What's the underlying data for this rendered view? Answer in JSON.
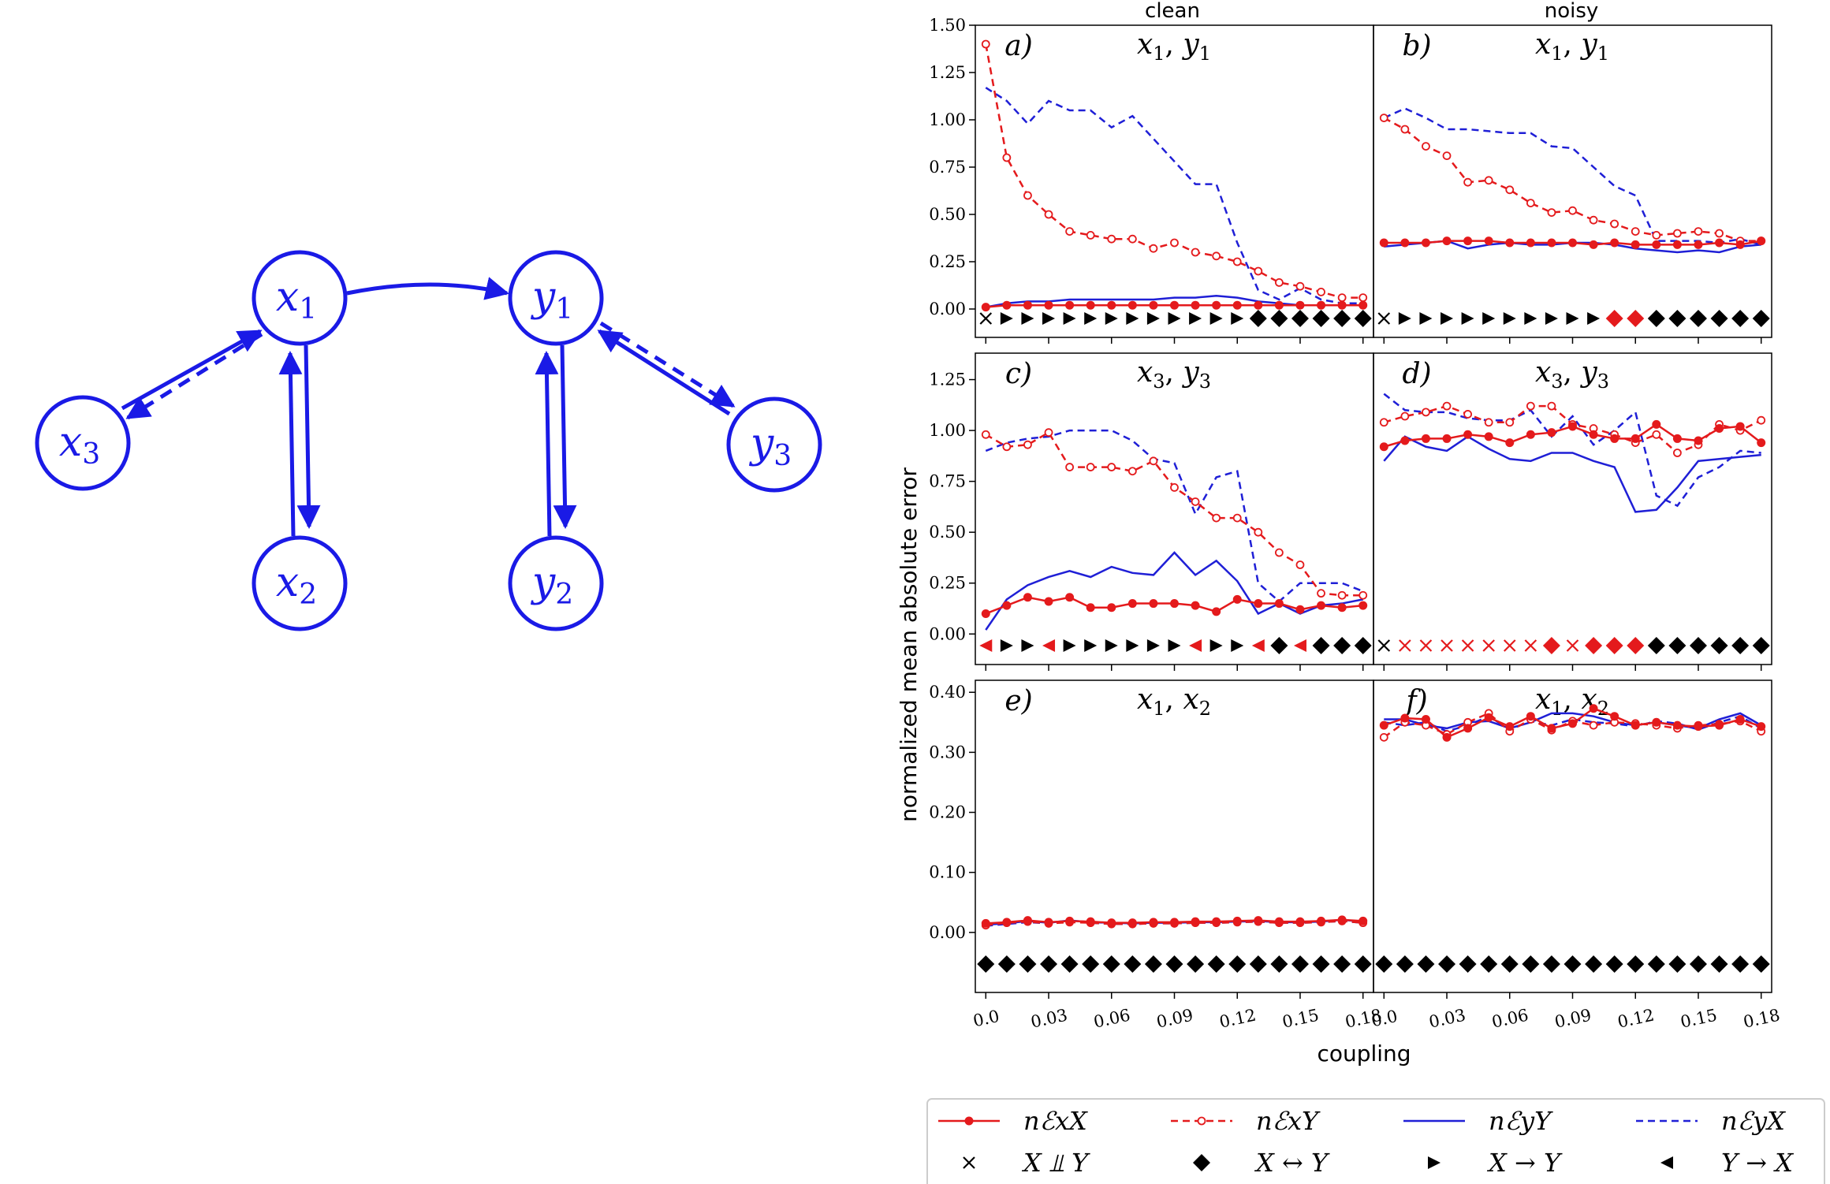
{
  "graph": {
    "nodes": [
      {
        "id": "x1",
        "base": "x",
        "sub": "1"
      },
      {
        "id": "y1",
        "base": "y",
        "sub": "1"
      },
      {
        "id": "x3",
        "base": "x",
        "sub": "3"
      },
      {
        "id": "x2",
        "base": "x",
        "sub": "2"
      },
      {
        "id": "y2",
        "base": "y",
        "sub": "2"
      },
      {
        "id": "y3",
        "base": "y",
        "sub": "3"
      }
    ],
    "edges": [
      {
        "from": "x1",
        "to": "y1",
        "style": "solid"
      },
      {
        "from": "x3",
        "to": "x1",
        "style": "solid"
      },
      {
        "from": "x1",
        "to": "x3",
        "style": "dashed"
      },
      {
        "from": "x1",
        "to": "x2",
        "style": "solid"
      },
      {
        "from": "x2",
        "to": "x1",
        "style": "solid"
      },
      {
        "from": "y1",
        "to": "y2",
        "style": "solid"
      },
      {
        "from": "y2",
        "to": "y1",
        "style": "solid"
      },
      {
        "from": "y3",
        "to": "y1",
        "style": "solid"
      },
      {
        "from": "y1",
        "to": "y3",
        "style": "dashed"
      }
    ],
    "color": "#1a1ae6"
  },
  "colors": {
    "red": "#e41a1c",
    "blue": "#1f1fd6",
    "black": "#000000"
  },
  "column_titles": [
    "clean",
    "noisy"
  ],
  "ylabel": "normalized mean absolute error",
  "xlabel": "coupling",
  "legend": {
    "lines": [
      {
        "key": "nExX",
        "label": "nℰxX",
        "color": "#e41a1c",
        "dash": "solid",
        "marker": "filled"
      },
      {
        "key": "nExY",
        "label": "nℰxY",
        "color": "#e41a1c",
        "dash": "dashed",
        "marker": "open"
      },
      {
        "key": "nEyY",
        "label": "nℰyY",
        "color": "#1f1fd6",
        "dash": "solid",
        "marker": "none"
      },
      {
        "key": "nEyX",
        "label": "nℰyX",
        "color": "#1f1fd6",
        "dash": "dashed",
        "marker": "none"
      }
    ],
    "symbols": [
      {
        "key": "x",
        "label": "X ⫫ Y"
      },
      {
        "key": "d",
        "label": "X ↔ Y"
      },
      {
        "key": "r",
        "label": "X → Y"
      },
      {
        "key": "l",
        "label": "Y → X"
      }
    ]
  },
  "chart_data": {
    "type": "line",
    "x": [
      0.0,
      0.01,
      0.02,
      0.03,
      0.04,
      0.05,
      0.06,
      0.07,
      0.08,
      0.09,
      0.1,
      0.11,
      0.12,
      0.13,
      0.14,
      0.15,
      0.16,
      0.17,
      0.18
    ],
    "xticks": [
      "0.0",
      "0.03",
      "0.06",
      "0.09",
      "0.12",
      "0.15",
      "0.18"
    ],
    "panels": [
      {
        "label": "a)",
        "pair": "x1, y1",
        "pair_base": [
          "x",
          "y"
        ],
        "pair_sub": [
          "1",
          "1"
        ],
        "ylim": [
          -0.15,
          1.5
        ],
        "yticks": [
          "0.00",
          "0.25",
          "0.50",
          "0.75",
          "1.00",
          "1.25",
          "1.50"
        ],
        "series": {
          "nExX": [
            0.01,
            0.02,
            0.02,
            0.02,
            0.02,
            0.02,
            0.02,
            0.02,
            0.02,
            0.02,
            0.02,
            0.02,
            0.02,
            0.02,
            0.02,
            0.02,
            0.02,
            0.02,
            0.02
          ],
          "nExY": [
            1.4,
            0.8,
            0.6,
            0.5,
            0.41,
            0.39,
            0.37,
            0.37,
            0.32,
            0.35,
            0.3,
            0.28,
            0.25,
            0.2,
            0.14,
            0.12,
            0.09,
            0.06,
            0.06
          ],
          "nEyY": [
            0.01,
            0.03,
            0.04,
            0.04,
            0.05,
            0.05,
            0.05,
            0.05,
            0.05,
            0.06,
            0.06,
            0.07,
            0.06,
            0.04,
            0.03,
            0.02,
            0.02,
            0.02,
            0.02
          ],
          "nEyX": [
            1.17,
            1.1,
            0.98,
            1.1,
            1.05,
            1.05,
            0.96,
            1.02,
            0.9,
            0.78,
            0.66,
            0.66,
            0.35,
            0.1,
            0.05,
            0.11,
            0.05,
            0.03,
            0.03
          ]
        },
        "symbols": [
          "x",
          "r",
          "r",
          "r",
          "r",
          "r",
          "r",
          "r",
          "r",
          "r",
          "r",
          "r",
          "r",
          "d",
          "d",
          "d",
          "d",
          "d",
          "d"
        ],
        "symbol_colors": [
          "k",
          "k",
          "k",
          "k",
          "k",
          "k",
          "k",
          "k",
          "k",
          "k",
          "k",
          "k",
          "k",
          "k",
          "k",
          "k",
          "k",
          "k",
          "k"
        ]
      },
      {
        "label": "b)",
        "pair": "x1, y1",
        "pair_base": [
          "x",
          "y"
        ],
        "pair_sub": [
          "1",
          "1"
        ],
        "ylim": [
          -0.15,
          1.5
        ],
        "yticks": [],
        "series": {
          "nExX": [
            0.35,
            0.35,
            0.35,
            0.36,
            0.36,
            0.36,
            0.35,
            0.35,
            0.35,
            0.35,
            0.34,
            0.35,
            0.34,
            0.34,
            0.34,
            0.34,
            0.35,
            0.34,
            0.36
          ],
          "nExY": [
            1.01,
            0.95,
            0.86,
            0.81,
            0.67,
            0.68,
            0.63,
            0.56,
            0.51,
            0.52,
            0.47,
            0.45,
            0.41,
            0.39,
            0.4,
            0.41,
            0.4,
            0.36,
            0.36
          ],
          "nEyY": [
            0.33,
            0.34,
            0.35,
            0.36,
            0.32,
            0.34,
            0.35,
            0.34,
            0.34,
            0.35,
            0.35,
            0.34,
            0.32,
            0.31,
            0.3,
            0.31,
            0.3,
            0.33,
            0.34
          ],
          "nEyX": [
            1.01,
            1.06,
            1.01,
            0.95,
            0.95,
            0.94,
            0.93,
            0.93,
            0.86,
            0.85,
            0.75,
            0.65,
            0.6,
            0.36,
            0.36,
            0.36,
            0.35,
            0.37,
            0.34
          ]
        },
        "symbols": [
          "x",
          "r",
          "r",
          "r",
          "r",
          "r",
          "r",
          "r",
          "r",
          "r",
          "r",
          "d",
          "d",
          "d",
          "d",
          "d",
          "d",
          "d",
          "d"
        ],
        "symbol_colors": [
          "k",
          "k",
          "k",
          "k",
          "k",
          "k",
          "k",
          "k",
          "k",
          "k",
          "k",
          "r",
          "r",
          "k",
          "k",
          "k",
          "k",
          "k",
          "k"
        ]
      },
      {
        "label": "c)",
        "pair": "x3, y3",
        "pair_base": [
          "x",
          "y"
        ],
        "pair_sub": [
          "3",
          "3"
        ],
        "ylim": [
          -0.15,
          1.38
        ],
        "yticks": [
          "0.00",
          "0.25",
          "0.50",
          "0.75",
          "1.00",
          "1.25"
        ],
        "series": {
          "nExX": [
            0.1,
            0.14,
            0.18,
            0.16,
            0.18,
            0.13,
            0.13,
            0.15,
            0.15,
            0.15,
            0.14,
            0.11,
            0.17,
            0.15,
            0.15,
            0.12,
            0.14,
            0.13,
            0.14
          ],
          "nExY": [
            0.98,
            0.92,
            0.93,
            0.99,
            0.82,
            0.82,
            0.82,
            0.8,
            0.85,
            0.72,
            0.65,
            0.57,
            0.57,
            0.5,
            0.4,
            0.34,
            0.2,
            0.19,
            0.19
          ],
          "nEyY": [
            0.02,
            0.17,
            0.24,
            0.28,
            0.31,
            0.28,
            0.33,
            0.3,
            0.29,
            0.4,
            0.29,
            0.36,
            0.26,
            0.1,
            0.15,
            0.1,
            0.14,
            0.15,
            0.17
          ],
          "nEyX": [
            0.9,
            0.94,
            0.96,
            0.97,
            1.0,
            1.0,
            1.0,
            0.95,
            0.86,
            0.84,
            0.59,
            0.77,
            0.8,
            0.25,
            0.16,
            0.25,
            0.25,
            0.25,
            0.21
          ]
        },
        "symbols": [
          "l",
          "r",
          "r",
          "l",
          "r",
          "r",
          "r",
          "r",
          "r",
          "r",
          "l",
          "r",
          "r",
          "l",
          "d",
          "l",
          "d",
          "d",
          "d"
        ],
        "symbol_colors": [
          "r",
          "k",
          "k",
          "r",
          "k",
          "k",
          "k",
          "k",
          "k",
          "k",
          "r",
          "k",
          "k",
          "r",
          "k",
          "r",
          "k",
          "k",
          "k"
        ]
      },
      {
        "label": "d)",
        "pair": "x3, y3",
        "pair_base": [
          "x",
          "y"
        ],
        "pair_sub": [
          "3",
          "3"
        ],
        "ylim": [
          -0.15,
          1.38
        ],
        "yticks": [],
        "series": {
          "nExX": [
            0.92,
            0.95,
            0.96,
            0.96,
            0.98,
            0.97,
            0.94,
            0.98,
            0.99,
            1.02,
            0.98,
            0.96,
            0.96,
            1.03,
            0.96,
            0.95,
            1.01,
            1.02,
            0.94
          ],
          "nExY": [
            1.04,
            1.07,
            1.09,
            1.12,
            1.08,
            1.04,
            1.04,
            1.12,
            1.12,
            1.03,
            1.01,
            0.98,
            0.94,
            0.98,
            0.89,
            0.93,
            1.03,
            1.0,
            1.05
          ],
          "nEyY": [
            0.85,
            0.97,
            0.92,
            0.9,
            0.97,
            0.91,
            0.86,
            0.85,
            0.89,
            0.89,
            0.85,
            0.82,
            0.6,
            0.61,
            0.72,
            0.85,
            0.86,
            0.87,
            0.88
          ],
          "nEyX": [
            1.18,
            1.1,
            1.09,
            1.09,
            1.06,
            1.05,
            1.05,
            1.1,
            0.97,
            1.07,
            0.93,
            1.0,
            1.09,
            0.68,
            0.63,
            0.77,
            0.82,
            0.9,
            0.89
          ]
        },
        "symbols": [
          "x",
          "x",
          "x",
          "x",
          "x",
          "x",
          "x",
          "x",
          "d",
          "x",
          "d",
          "d",
          "d",
          "d",
          "d",
          "d",
          "d",
          "d",
          "d"
        ],
        "symbol_colors": [
          "k",
          "r",
          "r",
          "r",
          "r",
          "r",
          "r",
          "r",
          "r",
          "r",
          "r",
          "r",
          "r",
          "k",
          "k",
          "k",
          "k",
          "k",
          "k"
        ]
      },
      {
        "label": "e)",
        "pair": "x1, x2",
        "pair_base": [
          "x",
          "x"
        ],
        "pair_sub": [
          "1",
          "2"
        ],
        "ylim": [
          -0.1,
          0.42
        ],
        "yticks": [
          "0.00",
          "0.10",
          "0.20",
          "0.30",
          "0.40"
        ],
        "series": {
          "nExX": [
            0.015,
            0.017,
            0.02,
            0.017,
            0.019,
            0.018,
            0.016,
            0.016,
            0.017,
            0.017,
            0.018,
            0.018,
            0.019,
            0.02,
            0.018,
            0.018,
            0.019,
            0.021,
            0.019
          ],
          "nExY": [
            0.012,
            0.016,
            0.018,
            0.015,
            0.017,
            0.016,
            0.014,
            0.014,
            0.015,
            0.015,
            0.016,
            0.016,
            0.017,
            0.018,
            0.016,
            0.016,
            0.017,
            0.019,
            0.016
          ],
          "nEyY": [
            0.013,
            0.015,
            0.019,
            0.016,
            0.02,
            0.017,
            0.016,
            0.015,
            0.016,
            0.016,
            0.017,
            0.017,
            0.018,
            0.019,
            0.017,
            0.017,
            0.018,
            0.021,
            0.018
          ],
          "nEyX": [
            0.011,
            0.014,
            0.017,
            0.015,
            0.018,
            0.016,
            0.014,
            0.014,
            0.015,
            0.015,
            0.016,
            0.016,
            0.017,
            0.018,
            0.016,
            0.016,
            0.017,
            0.019,
            0.016
          ]
        },
        "symbols": [
          "d",
          "d",
          "d",
          "d",
          "d",
          "d",
          "d",
          "d",
          "d",
          "d",
          "d",
          "d",
          "d",
          "d",
          "d",
          "d",
          "d",
          "d",
          "d"
        ],
        "symbol_colors": [
          "k",
          "k",
          "k",
          "k",
          "k",
          "k",
          "k",
          "k",
          "k",
          "k",
          "k",
          "k",
          "k",
          "k",
          "k",
          "k",
          "k",
          "k",
          "k"
        ]
      },
      {
        "label": "f)",
        "pair": "x1, x2",
        "pair_base": [
          "x",
          "x"
        ],
        "pair_sub": [
          "1",
          "2"
        ],
        "ylim": [
          -0.1,
          0.42
        ],
        "yticks": [],
        "series": {
          "nExX": [
            0.345,
            0.357,
            0.355,
            0.325,
            0.34,
            0.358,
            0.343,
            0.36,
            0.34,
            0.348,
            0.373,
            0.36,
            0.345,
            0.35,
            0.345,
            0.343,
            0.345,
            0.355,
            0.343
          ],
          "nExY": [
            0.325,
            0.35,
            0.345,
            0.33,
            0.35,
            0.365,
            0.335,
            0.355,
            0.337,
            0.352,
            0.345,
            0.35,
            0.348,
            0.345,
            0.34,
            0.345,
            0.347,
            0.352,
            0.335
          ],
          "nEyY": [
            0.355,
            0.355,
            0.345,
            0.34,
            0.35,
            0.352,
            0.34,
            0.35,
            0.365,
            0.365,
            0.36,
            0.35,
            0.345,
            0.35,
            0.345,
            0.34,
            0.355,
            0.365,
            0.345
          ],
          "nEyX": [
            0.35,
            0.345,
            0.35,
            0.335,
            0.345,
            0.36,
            0.338,
            0.352,
            0.345,
            0.355,
            0.35,
            0.348,
            0.343,
            0.352,
            0.348,
            0.338,
            0.35,
            0.36,
            0.34
          ]
        },
        "symbols": [
          "d",
          "d",
          "d",
          "d",
          "d",
          "d",
          "d",
          "d",
          "d",
          "d",
          "d",
          "d",
          "d",
          "d",
          "d",
          "d",
          "d",
          "d",
          "d"
        ],
        "symbol_colors": [
          "k",
          "k",
          "k",
          "k",
          "k",
          "k",
          "k",
          "k",
          "k",
          "k",
          "k",
          "k",
          "k",
          "k",
          "k",
          "k",
          "k",
          "k",
          "k"
        ]
      }
    ]
  }
}
